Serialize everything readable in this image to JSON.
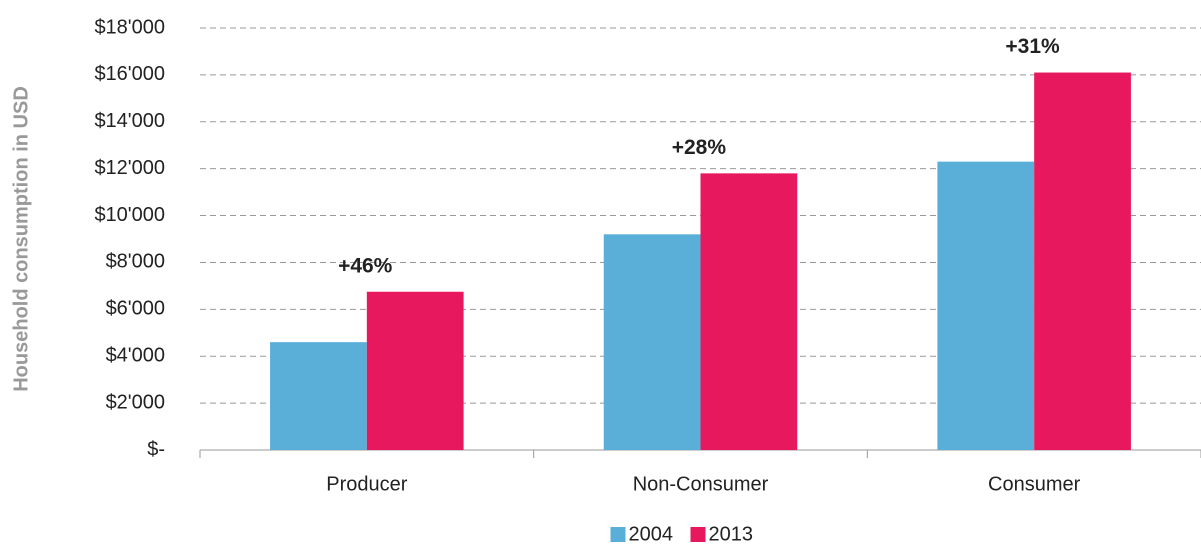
{
  "chart_data": {
    "type": "bar",
    "y_axis_label": "Household consumption in USD",
    "categories": [
      "Producer",
      "Non-Consumer",
      "Consumer"
    ],
    "series": [
      {
        "name": "2004",
        "color": "#5aafd9",
        "values": [
          4600,
          9200,
          12300
        ]
      },
      {
        "name": "2013",
        "color": "#e8185f",
        "values": [
          6750,
          11800,
          16100
        ]
      }
    ],
    "annotations": [
      "+46%",
      "+28%",
      "+31%"
    ],
    "ylim": [
      0,
      18000
    ],
    "yticks": [
      {
        "value": 0,
        "label": "$-"
      },
      {
        "value": 2000,
        "label": "$2'000"
      },
      {
        "value": 4000,
        "label": "$4'000"
      },
      {
        "value": 6000,
        "label": "$6'000"
      },
      {
        "value": 8000,
        "label": "$8'000"
      },
      {
        "value": 10000,
        "label": "$10'000"
      },
      {
        "value": 12000,
        "label": "$12'000"
      },
      {
        "value": 14000,
        "label": "$14'000"
      },
      {
        "value": 16000,
        "label": "$16'000"
      },
      {
        "value": 18000,
        "label": "$18'000"
      }
    ],
    "grid": true,
    "legend": "bottom"
  }
}
